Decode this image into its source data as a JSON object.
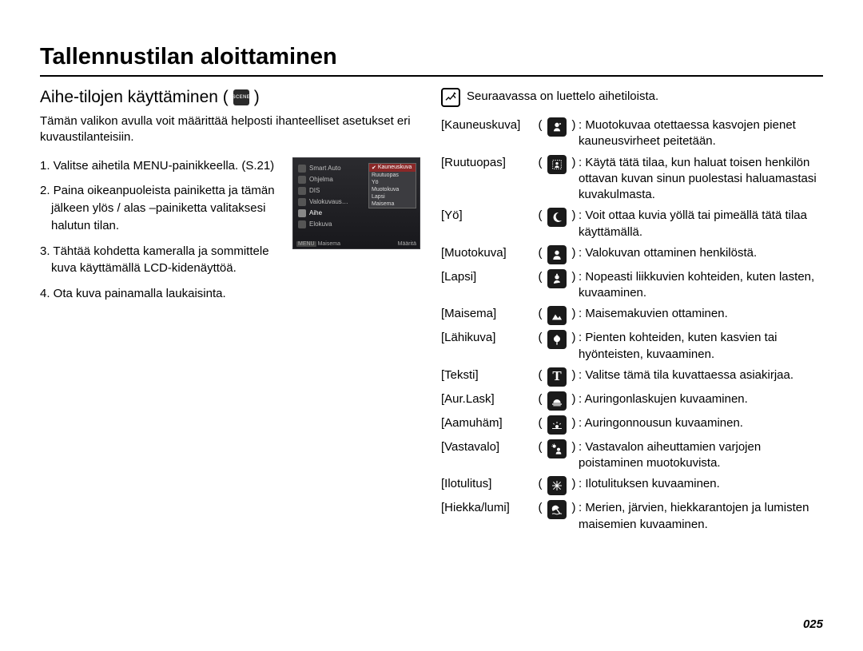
{
  "title": "Tallennustilan aloittaminen",
  "subtitle": "Aihe-tilojen käyttäminen (",
  "subtitle_close": ")",
  "lead": "Tämän valikon avulla voit määrittää helposti ihanteelliset asetukset eri kuvaustilanteisiin.",
  "steps": [
    "1. Valitse aihetila MENU-painikkeella. (S.21)",
    "2. Paina oikeanpuoleista painiketta ja tämän jälkeen ylös / alas –painiketta valitaksesi halutun tilan.",
    "3. Tähtää kohdetta kameralla ja sommittele kuva käyttämällä LCD-kidenäyttöä.",
    "4. Ota kuva painamalla laukaisinta."
  ],
  "screenshot": {
    "left_items": [
      "Smart Auto",
      "Ohjelma",
      "DIS",
      "Valokuvaus…",
      "Aihe",
      "Elokuva"
    ],
    "menu_header": "Kauneuskuva",
    "menu_items": [
      "Ruutuopas",
      "Yö",
      "Muotokuva",
      "Lapsi",
      "Maisema"
    ],
    "foot_left": "Maisema",
    "foot_right": "Määritä"
  },
  "note": "Seuraavassa on luettelo aihetiloista.",
  "scenes": [
    {
      "label": "[Kauneuskuva]",
      "icon": "beauty",
      "desc": ": Muotokuvaa otettaessa kasvojen pienet kauneusvirheet peitetään."
    },
    {
      "label": "[Ruutuopas]",
      "icon": "guide",
      "desc": ": Käytä tätä tilaa, kun haluat toisen henkilön ottavan kuvan sinun puolestasi haluamastasi kuvakulmasta."
    },
    {
      "label": "[Yö]",
      "icon": "night",
      "desc": ": Voit ottaa kuvia yöllä tai pimeällä tätä tilaa käyttämällä."
    },
    {
      "label": "[Muotokuva]",
      "icon": "portrait",
      "desc": ": Valokuvan ottaminen henkilöstä."
    },
    {
      "label": "[Lapsi]",
      "icon": "child",
      "desc": ": Nopeasti liikkuvien kohteiden, kuten lasten, kuvaaminen."
    },
    {
      "label": "[Maisema]",
      "icon": "landscape",
      "desc": ": Maisemakuvien ottaminen."
    },
    {
      "label": "[Lähikuva]",
      "icon": "closeup",
      "desc": ": Pienten kohteiden, kuten kasvien tai hyönteisten, kuvaaminen."
    },
    {
      "label": "[Teksti]",
      "icon": "text",
      "desc": ": Valitse tämä tila kuvattaessa asiakirjaa."
    },
    {
      "label": "[Aur.Lask]",
      "icon": "sunset",
      "desc": ": Auringonlaskujen kuvaaminen."
    },
    {
      "label": "[Aamuhäm]",
      "icon": "dawn",
      "desc": ": Auringonnousun kuvaaminen."
    },
    {
      "label": "[Vastavalo]",
      "icon": "backlight",
      "desc": ": Vastavalon aiheuttamien varjojen poistaminen muotokuvista."
    },
    {
      "label": "[Ilotulitus]",
      "icon": "firework",
      "desc": ": Ilotulituksen kuvaaminen."
    },
    {
      "label": "[Hiekka/lumi]",
      "icon": "beach",
      "desc": ": Merien, järvien, hiekkarantojen ja lumisten maisemien kuvaaminen."
    }
  ],
  "page_number": "025"
}
